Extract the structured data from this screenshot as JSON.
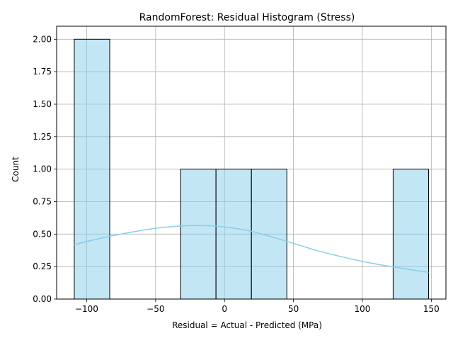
{
  "chart_data": {
    "type": "bar",
    "title": "RandomForest: Residual Histogram (Stress)",
    "xlabel": "Residual = Actual - Predicted (MPa)",
    "ylabel": "Count",
    "xlim": [
      -121.8,
      160.6
    ],
    "ylim": [
      0,
      2.1
    ],
    "xticks": [
      -100,
      -50,
      0,
      50,
      100,
      150
    ],
    "xtick_labels": [
      "−100",
      "−50",
      "0",
      "50",
      "100",
      "150"
    ],
    "yticks": [
      0,
      0.25,
      0.5,
      0.75,
      1.0,
      1.25,
      1.5,
      1.75,
      2.0
    ],
    "ytick_labels": [
      "0.00",
      "0.25",
      "0.50",
      "0.75",
      "1.00",
      "1.25",
      "1.50",
      "1.75",
      "2.00"
    ],
    "grid": true,
    "bin_edges": [
      -109,
      -83.3,
      -57.6,
      -31.9,
      -6.2,
      19.5,
      45.2,
      70.9,
      96.6,
      122.3,
      148
    ],
    "counts": [
      2,
      0,
      0,
      1,
      1,
      1,
      0,
      0,
      0,
      1
    ],
    "bar_color": "#87ceeb",
    "kde": {
      "name": "",
      "color": "#87ceeb",
      "x": [
        -109,
        -80,
        -50,
        -30,
        -15,
        0,
        20,
        45,
        70,
        100,
        122,
        148
      ],
      "y": [
        0.42,
        0.49,
        0.545,
        0.563,
        0.565,
        0.555,
        0.52,
        0.445,
        0.365,
        0.29,
        0.248,
        0.205
      ]
    }
  }
}
